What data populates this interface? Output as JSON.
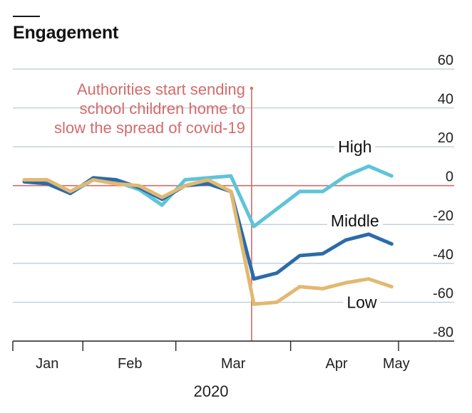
{
  "chart_data": {
    "type": "line",
    "title": "Engagement",
    "x_ticks": [
      "Jan",
      "Feb",
      "Mar",
      "Apr",
      "May"
    ],
    "x_ticks_x": [
      1.5,
      5.1,
      9.6,
      14.1,
      16.7
    ],
    "year_label": "2020",
    "ylim": [
      -80,
      60
    ],
    "yticks": [
      60,
      40,
      20,
      0,
      -20,
      -40,
      -60,
      -80
    ],
    "ytick_labels": [
      "60",
      "40",
      "20",
      "0",
      "-20",
      "-40",
      "-60",
      "-80"
    ],
    "annotation": {
      "lines": [
        "Authorities start sending",
        "school children home to",
        "slow the spread of covid-19"
      ],
      "x": 10.4
    },
    "x": [
      0.5,
      1.5,
      2.5,
      3.5,
      4.5,
      5.5,
      6.5,
      7.5,
      8.5,
      9.5,
      10.5,
      11.5,
      12.5,
      13.5,
      14.5,
      15.5,
      16.5
    ],
    "series": [
      {
        "name": "High",
        "label": "High",
        "color": "#5ec4d8",
        "values": [
          2,
          2,
          -4,
          3,
          2,
          -2,
          -10,
          3,
          4,
          5,
          -21,
          -12,
          -3,
          -3,
          5,
          10,
          5
        ],
        "label_anchor": [
          14.9,
          20
        ]
      },
      {
        "name": "Middle",
        "label": "Middle",
        "color": "#2b6ca8",
        "values": [
          2,
          1,
          -4,
          4,
          3,
          -1,
          -7,
          0,
          1,
          -3,
          -48,
          -45,
          -36,
          -35,
          -28,
          -25,
          -30
        ],
        "label_anchor": [
          14.9,
          -18
        ]
      },
      {
        "name": "Low",
        "label": "Low",
        "color": "#e2b871",
        "values": [
          3,
          3,
          -3,
          3,
          1,
          0,
          -6,
          0,
          3,
          -3,
          -61,
          -60,
          -52,
          -53,
          -50,
          -48,
          -52
        ],
        "label_anchor": [
          15.2,
          -60
        ]
      }
    ]
  }
}
